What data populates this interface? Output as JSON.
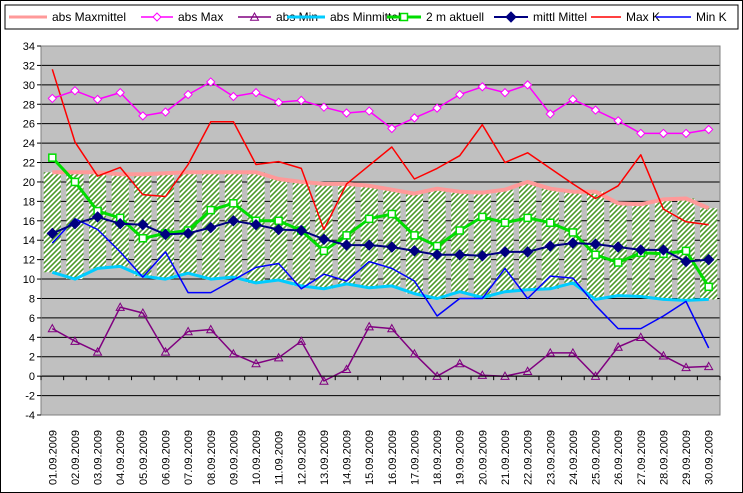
{
  "chart_data": {
    "type": "line",
    "categories": [
      "01.09.2009",
      "02.09.2009",
      "03.09.2009",
      "04.09.2009",
      "05.09.2009",
      "06.09.2009",
      "07.09.2009",
      "08.09.2009",
      "09.09.2009",
      "10.09.2009",
      "11.09.2009",
      "12.09.2009",
      "13.09.2009",
      "14.09.2009",
      "15.09.2009",
      "16.09.2009",
      "17.09.2009",
      "18.09.2009",
      "19.09.2009",
      "20.09.2009",
      "21.09.2009",
      "22.09.2009",
      "23.09.2009",
      "24.09.2009",
      "25.09.2009",
      "26.09.2009",
      "27.09.2009",
      "28.09.2009",
      "29.09.2009",
      "30.09.2009"
    ],
    "ylim": [
      -4,
      34
    ],
    "ytick_step": 2,
    "grid": "horizontal",
    "legend_position": "top",
    "plot_background": "#c0c0c0",
    "band_fill": "hatched-green",
    "series": [
      {
        "name": "abs Maxmittel",
        "color": "#ff9999",
        "marker": "none",
        "width": 4,
        "values": [
          21.0,
          21.0,
          21.0,
          20.8,
          20.8,
          20.9,
          21.0,
          21.0,
          21.0,
          21.0,
          20.3,
          20.0,
          19.8,
          19.8,
          19.6,
          19.2,
          18.8,
          19.3,
          19.0,
          18.9,
          19.2,
          20.0,
          19.3,
          19.0,
          19.0,
          17.8,
          17.7,
          18.2,
          18.3,
          17.3
        ]
      },
      {
        "name": "abs Max",
        "color": "#ff00ff",
        "marker": "diamond-open",
        "width": 1.5,
        "values": [
          28.6,
          29.4,
          28.5,
          29.2,
          26.8,
          27.2,
          29.0,
          30.3,
          28.8,
          29.2,
          28.2,
          28.4,
          27.7,
          27.1,
          27.3,
          25.5,
          26.6,
          27.6,
          29.0,
          29.8,
          29.2,
          30.0,
          27.0,
          28.5,
          27.4,
          26.3,
          25.0,
          25.0,
          25.0,
          25.4
        ]
      },
      {
        "name": "abs Min",
        "color": "#800080",
        "marker": "triangle-open",
        "width": 1.5,
        "values": [
          4.9,
          3.6,
          2.5,
          7.1,
          6.5,
          2.5,
          4.6,
          4.8,
          2.3,
          1.3,
          1.9,
          3.6,
          -0.5,
          0.7,
          5.1,
          4.9,
          2.3,
          0.0,
          1.3,
          0.1,
          0.0,
          0.5,
          2.4,
          2.4,
          0.0,
          3.0,
          4.0,
          2.1,
          0.9,
          1.0
        ]
      },
      {
        "name": "abs Minmittel",
        "color": "#00ccff",
        "marker": "none",
        "width": 3,
        "values": [
          10.7,
          10.0,
          11.1,
          11.3,
          10.3,
          10.0,
          10.6,
          10.0,
          10.2,
          9.6,
          9.9,
          9.3,
          9.0,
          9.5,
          9.1,
          9.3,
          8.5,
          8.0,
          8.7,
          8.1,
          8.7,
          8.9,
          9.0,
          9.6,
          7.9,
          8.3,
          8.2,
          7.9,
          7.8,
          7.9
        ]
      },
      {
        "name": "2 m aktuell",
        "color": "#00dd00",
        "marker": "square-open",
        "width": 3,
        "values": [
          22.5,
          20.0,
          17.0,
          16.3,
          14.2,
          14.7,
          15.0,
          17.1,
          17.8,
          16.0,
          16.0,
          15.0,
          12.9,
          14.5,
          16.2,
          16.7,
          14.5,
          13.4,
          15.0,
          16.4,
          15.8,
          16.3,
          15.8,
          14.8,
          12.5,
          11.7,
          12.7,
          12.6,
          12.9,
          9.2
        ]
      },
      {
        "name": "mittl Mittel",
        "color": "#000080",
        "marker": "diamond-filled",
        "width": 2,
        "values": [
          14.7,
          15.7,
          16.4,
          15.7,
          15.6,
          14.6,
          14.7,
          15.3,
          16.0,
          15.6,
          15.1,
          15.0,
          14.1,
          13.5,
          13.5,
          13.3,
          12.9,
          12.5,
          12.5,
          12.4,
          12.8,
          12.8,
          13.4,
          13.7,
          13.6,
          13.3,
          13.0,
          13.0,
          11.8,
          12.0
        ]
      },
      {
        "name": "Max K",
        "color": "#ff0000",
        "marker": "none",
        "width": 1.5,
        "values": [
          31.6,
          24.1,
          20.6,
          21.5,
          18.7,
          18.5,
          21.8,
          26.2,
          26.2,
          21.8,
          22.1,
          21.4,
          15.1,
          19.8,
          21.7,
          23.6,
          20.3,
          21.4,
          22.7,
          25.9,
          22.0,
          23.0,
          21.4,
          19.8,
          18.3,
          19.6,
          22.8,
          17.2,
          15.9,
          15.6
        ]
      },
      {
        "name": "Min K",
        "color": "#0000ff",
        "marker": "none",
        "width": 1.5,
        "values": [
          13.7,
          16.2,
          15.1,
          12.8,
          10.2,
          12.8,
          8.6,
          8.6,
          9.9,
          11.2,
          11.6,
          9.0,
          10.5,
          9.8,
          11.8,
          11.1,
          9.8,
          6.2,
          8.0,
          8.0,
          11.1,
          8.0,
          10.3,
          10.1,
          7.3,
          4.9,
          4.9,
          6.2,
          7.7,
          2.9
        ]
      }
    ]
  }
}
